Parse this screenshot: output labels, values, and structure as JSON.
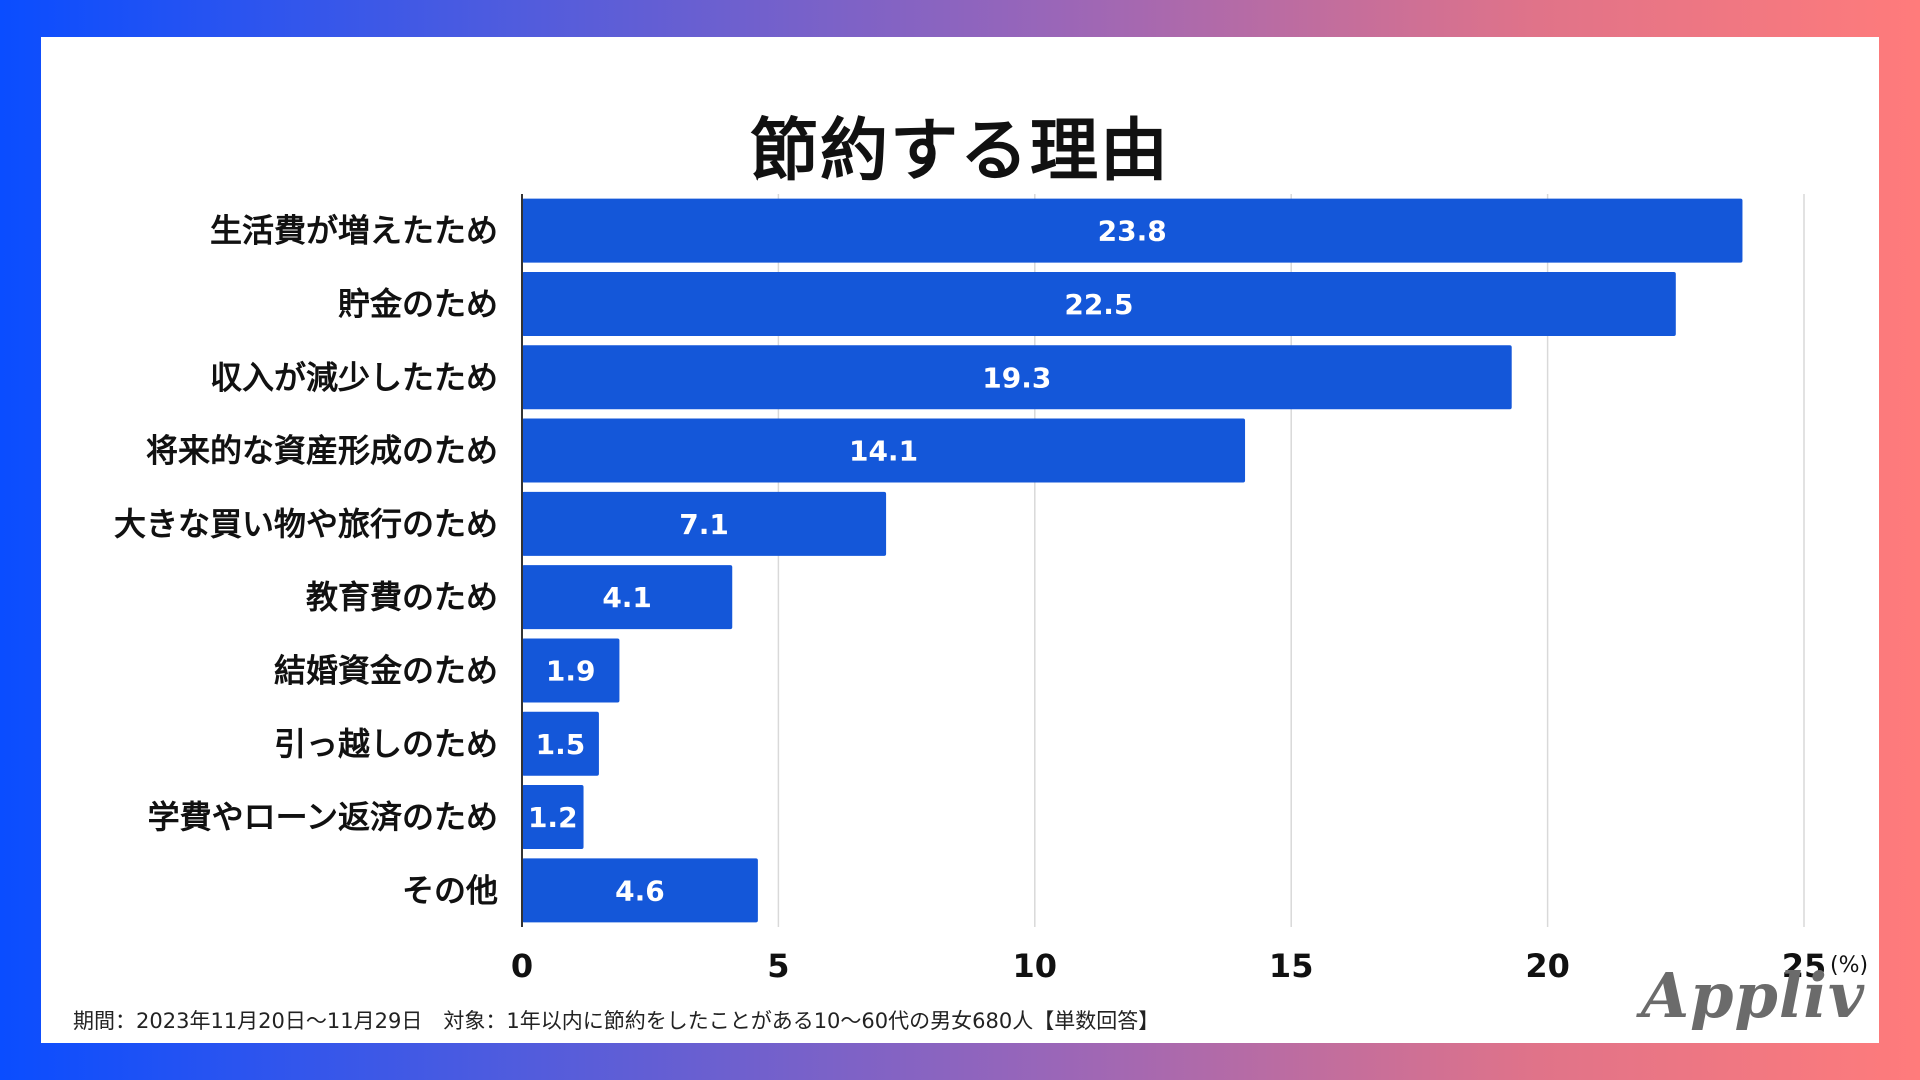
{
  "chart_data": {
    "type": "bar",
    "orientation": "horizontal",
    "title": "節約する理由",
    "categories": [
      "生活費が増えたため",
      "貯金のため",
      "収入が減少したため",
      "将来的な資産形成のため",
      "大きな買い物や旅行のため",
      "教育費のため",
      "結婚資金のため",
      "引っ越しのため",
      "学費やローン返済のため",
      "その他"
    ],
    "values": [
      23.8,
      22.5,
      19.3,
      14.1,
      7.1,
      4.1,
      1.9,
      1.5,
      1.2,
      4.6
    ],
    "value_labels": [
      "23.8",
      "22.5",
      "19.3",
      "14.1",
      "7.1",
      "4.1",
      "1.9",
      "1.5",
      "1.2",
      "4.6"
    ],
    "xlim": [
      0,
      25
    ],
    "xticks": [
      0,
      5,
      10,
      15,
      20,
      25
    ],
    "xtick_labels": [
      "0",
      "5",
      "10",
      "15",
      "20",
      "25"
    ],
    "unit_label": "(%)",
    "grid": true,
    "bar_color": "#1457d9"
  },
  "footnote": "期間：2023年11月20日〜11月29日　対象：1年以内に節約をしたことがある10〜60代の男女680人【単数回答】",
  "logo": "Appliv",
  "colors": {
    "background_start": "#0a4dff",
    "background_end": "#ff7b7b",
    "bar": "#1457d9",
    "grid": "#d9d9d9"
  }
}
